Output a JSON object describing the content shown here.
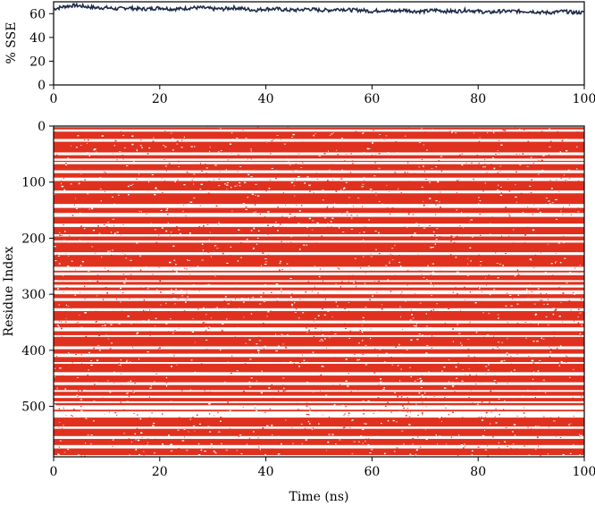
{
  "colors": {
    "sse_line": "#1c2a4a",
    "timeline_bands": "#e0311f",
    "axis": "#000000",
    "background": "#ffffff"
  },
  "chart_data": [
    {
      "type": "line",
      "panel": "top",
      "title": "",
      "xlabel": "",
      "ylabel": "% SSE",
      "xlim": [
        0,
        100
      ],
      "ylim": [
        0,
        70
      ],
      "xticks": [
        0,
        20,
        40,
        60,
        80,
        100
      ],
      "yticks": [
        0,
        20,
        40,
        60
      ],
      "grid": false,
      "series": [
        {
          "x": [
            0,
            2,
            4,
            6,
            8,
            10,
            12,
            14,
            16,
            18,
            20,
            22,
            24,
            26,
            28,
            30,
            32,
            34,
            36,
            38,
            40,
            42,
            44,
            46,
            48,
            50,
            52,
            54,
            56,
            58,
            60,
            62,
            64,
            66,
            68,
            70,
            72,
            74,
            76,
            78,
            80,
            82,
            84,
            86,
            88,
            90,
            92,
            94,
            96,
            98,
            100
          ],
          "y": [
            64,
            66,
            67,
            66,
            65,
            65,
            64,
            65,
            64,
            64,
            65,
            64,
            64,
            65,
            65,
            64,
            64,
            65,
            64,
            63,
            64,
            64,
            63,
            63,
            64,
            63,
            63,
            64,
            63,
            63,
            62,
            63,
            62,
            63,
            62,
            62,
            63,
            62,
            62,
            63,
            62,
            61,
            62,
            62,
            62,
            62,
            61,
            61,
            62,
            61,
            61
          ]
        }
      ]
    },
    {
      "type": "heatmap",
      "panel": "bottom",
      "title": "",
      "xlabel": "Time (ns)",
      "ylabel": "Residue Index",
      "xlim": [
        0,
        100
      ],
      "ylim": [
        590,
        0
      ],
      "xticks": [
        0,
        20,
        40,
        60,
        80,
        100
      ],
      "yticks": [
        0,
        100,
        200,
        300,
        400,
        500
      ],
      "grid": false,
      "description_value": "secondary-structure element timeline per residue",
      "sse_residue_ranges": [
        [
          2,
          5
        ],
        [
          10,
          22
        ],
        [
          28,
          46
        ],
        [
          52,
          57
        ],
        [
          62,
          63
        ],
        [
          68,
          78
        ],
        [
          84,
          91
        ],
        [
          98,
          114
        ],
        [
          120,
          138
        ],
        [
          146,
          154
        ],
        [
          162,
          173
        ],
        [
          180,
          192
        ],
        [
          197,
          203
        ],
        [
          208,
          224
        ],
        [
          230,
          250
        ],
        [
          258,
          260
        ],
        [
          266,
          274
        ],
        [
          278,
          282
        ],
        [
          288,
          292
        ],
        [
          300,
          306
        ],
        [
          312,
          324
        ],
        [
          330,
          346
        ],
        [
          352,
          358
        ],
        [
          366,
          372
        ],
        [
          376,
          392
        ],
        [
          398,
          405
        ],
        [
          412,
          420
        ],
        [
          424,
          438
        ],
        [
          445,
          456
        ],
        [
          462,
          470
        ],
        [
          474,
          480
        ],
        [
          485,
          490
        ],
        [
          494,
          497
        ],
        [
          506,
          508
        ],
        [
          520,
          535
        ],
        [
          540,
          552
        ],
        [
          558,
          568
        ],
        [
          575,
          586
        ]
      ]
    }
  ]
}
